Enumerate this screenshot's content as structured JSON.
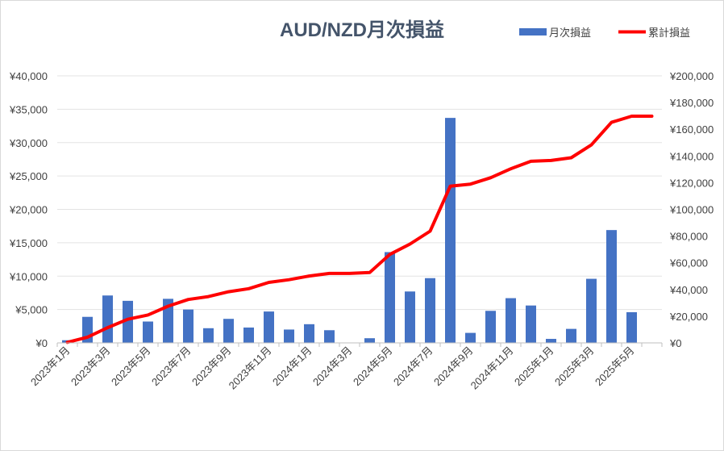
{
  "chart_data": {
    "type": "bar",
    "title": "AUD/NZD月次損益",
    "categories": [
      "2023年1月",
      "2023年2月",
      "2023年3月",
      "2023年4月",
      "2023年5月",
      "2023年6月",
      "2023年7月",
      "2023年8月",
      "2023年9月",
      "2023年10月",
      "2023年11月",
      "2023年12月",
      "2024年1月",
      "2024年2月",
      "2024年3月",
      "2024年4月",
      "2024年5月",
      "2024年6月",
      "2024年7月",
      "2024年8月",
      "2024年9月",
      "2024年10月",
      "2024年11月",
      "2024年12月",
      "2025年1月",
      "2025年2月",
      "2025年3月",
      "2025年4月",
      "2025年5月",
      "2025年6月"
    ],
    "x_tick_labels": [
      "2023年1月",
      "2023年3月",
      "2023年5月",
      "2023年7月",
      "2023年9月",
      "2023年11月",
      "2024年1月",
      "2024年3月",
      "2024年5月",
      "2024年7月",
      "2024年9月",
      "2024年11月",
      "2025年1月",
      "2025年3月",
      "2025年5月"
    ],
    "series": [
      {
        "name": "月次損益",
        "axis": "left",
        "kind": "bar",
        "color": "#4472c4",
        "values": [
          400,
          3900,
          7100,
          6300,
          3200,
          6600,
          5000,
          2200,
          3600,
          2300,
          4700,
          2000,
          2800,
          1900,
          0,
          700,
          13600,
          7700,
          9700,
          33700,
          1500,
          4800,
          6700,
          5600,
          600,
          2100,
          9600,
          16900,
          4600,
          0
        ]
      },
      {
        "name": "累計損益",
        "axis": "right",
        "kind": "line",
        "color": "#ff0000",
        "values": [
          400,
          4300,
          11400,
          17700,
          20900,
          27500,
          32500,
          34700,
          38300,
          40600,
          45300,
          47300,
          50100,
          52000,
          52000,
          52700,
          66300,
          74000,
          83700,
          117400,
          118900,
          123700,
          130400,
          136000,
          136600,
          138700,
          148300,
          165200,
          169800,
          169800
        ]
      }
    ],
    "y_left": {
      "min": 0,
      "max": 40000,
      "step": 5000,
      "tick_labels": [
        "¥0",
        "¥5,000",
        "¥10,000",
        "¥15,000",
        "¥20,000",
        "¥25,000",
        "¥30,000",
        "¥35,000",
        "¥40,000"
      ]
    },
    "y_right": {
      "min": 0,
      "max": 200000,
      "step": 20000,
      "tick_labels": [
        "¥0",
        "¥20,000",
        "¥40,000",
        "¥60,000",
        "¥80,000",
        "¥100,000",
        "¥120,000",
        "¥140,000",
        "¥160,000",
        "¥180,000",
        "¥200,000"
      ]
    },
    "grid": true,
    "legend": {
      "position": "top-right",
      "items": [
        "月次損益",
        "累計損益"
      ]
    }
  }
}
